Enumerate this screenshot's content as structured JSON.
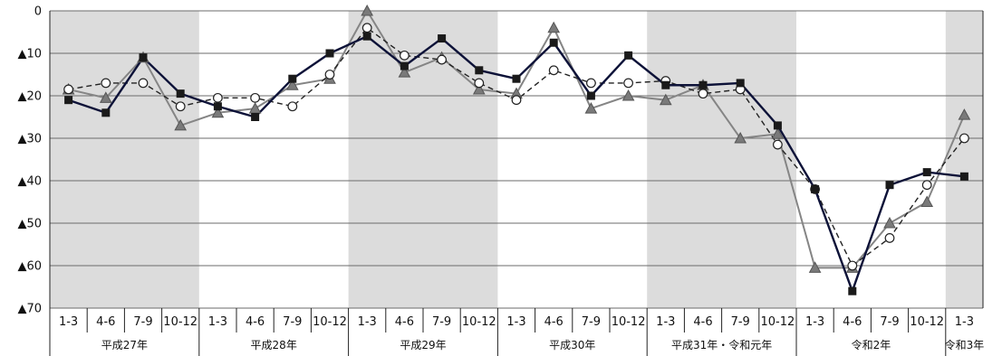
{
  "chart_data": {
    "type": "line",
    "ylim": [
      -70,
      0
    ],
    "y_ticks": [
      "0",
      "▲10",
      "▲20",
      "▲30",
      "▲40",
      "▲50",
      "▲60",
      "▲70"
    ],
    "categories": [
      "1-3",
      "4-6",
      "7-9",
      "10-12",
      "1-3",
      "4-6",
      "7-9",
      "10-12",
      "1-3",
      "4-6",
      "7-9",
      "10-12",
      "1-3",
      "4-6",
      "7-9",
      "10-12",
      "1-3",
      "4-6",
      "7-9",
      "10-12",
      "1-3",
      "4-6",
      "7-9",
      "10-12",
      "1-3"
    ],
    "groups": [
      {
        "label": "平成27年",
        "count": 4,
        "shaded": true
      },
      {
        "label": "平成28年",
        "count": 4,
        "shaded": false
      },
      {
        "label": "平成29年",
        "count": 4,
        "shaded": true
      },
      {
        "label": "平成30年",
        "count": 4,
        "shaded": false
      },
      {
        "label": "平成31年・令和元年",
        "count": 4,
        "shaded": true
      },
      {
        "label": "令和2年",
        "count": 4,
        "shaded": false
      },
      {
        "label": "令和3年",
        "count": 1,
        "shaded": true
      }
    ],
    "grid": true,
    "series": [
      {
        "marker": "square",
        "color": "#0d1238",
        "line": "solid",
        "values": [
          -21,
          -24,
          -11,
          -19.5,
          -22.5,
          -25,
          -16,
          -10,
          -6,
          -13,
          -6.5,
          -14,
          -16,
          -7.5,
          -20,
          -10.5,
          -17.5,
          -17.5,
          -17,
          -27,
          -42,
          -66,
          -41,
          -38,
          -39
        ]
      },
      {
        "marker": "triangle",
        "color": "#858585",
        "line": "solid",
        "values": [
          -18.5,
          -20.5,
          -11,
          -27,
          -24,
          -23,
          -17.5,
          -16,
          0,
          -14.5,
          -11,
          -18.5,
          -19.5,
          -4,
          -23,
          -20,
          -21,
          -17.5,
          -30,
          -29,
          -60.5,
          -60.5,
          -50,
          -45,
          -24.5
        ]
      },
      {
        "marker": "circle",
        "color": "#222222",
        "line": "dashed",
        "values": [
          -18.5,
          -17,
          -17,
          -22.5,
          -20.5,
          -20.5,
          -22.5,
          -15,
          -4,
          -10.5,
          -11.5,
          -17,
          -21,
          -14,
          -17,
          -17,
          -16.5,
          -19.5,
          -18.5,
          -31.5,
          -42,
          -60,
          -53.5,
          -41,
          -30
        ]
      }
    ]
  }
}
